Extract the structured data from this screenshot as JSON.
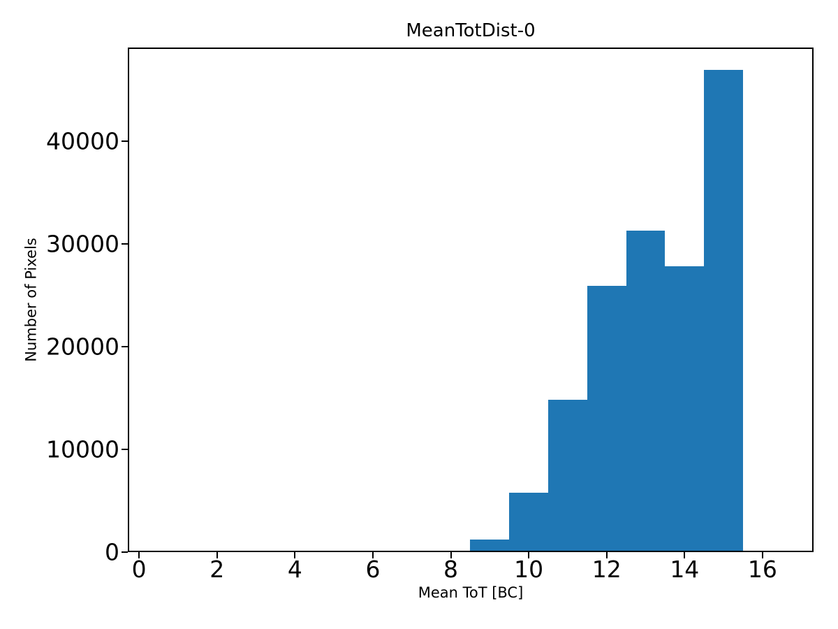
{
  "figure": {
    "background_color": "#ffffff",
    "text_color": "#000000"
  },
  "chart_data": {
    "type": "bar",
    "subtype": "histogram",
    "title": "MeanTotDist-0",
    "xlabel": "Mean ToT [BC]",
    "ylabel": "Number of Pixels",
    "bar_color": "#1f77b4",
    "grid": false,
    "legend": null,
    "bin_edges": [
      7.5,
      8.5,
      9.5,
      10.5,
      11.5,
      12.5,
      13.5,
      14.5,
      15.5
    ],
    "values": [
      150,
      1200,
      5800,
      14800,
      25900,
      31300,
      27800,
      46900
    ],
    "x_ticks": [
      0,
      2,
      4,
      6,
      8,
      10,
      12,
      14,
      16
    ],
    "y_ticks": [
      0,
      10000,
      20000,
      30000,
      40000
    ],
    "xlim": [
      -0.29,
      17.31
    ],
    "ylim": [
      0,
      49100
    ]
  }
}
